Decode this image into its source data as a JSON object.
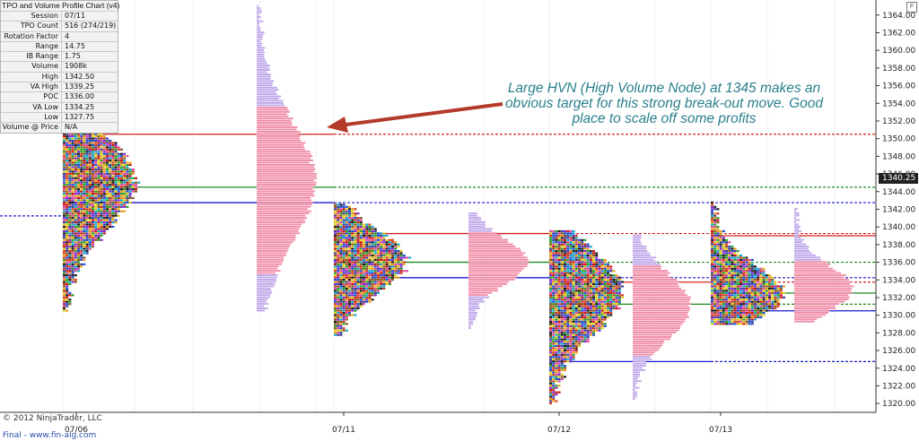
{
  "info_panel": {
    "title": "TPO and Volume Profile Chart (v4)",
    "rows": [
      {
        "key": "Session",
        "value": "07/11"
      },
      {
        "key": "TPO Count",
        "value": "516 (274/219)"
      },
      {
        "key": "Rotation Factor",
        "value": "4"
      },
      {
        "key": "Range",
        "value": "14.75"
      },
      {
        "key": "IB Range",
        "value": "1.75"
      },
      {
        "key": "Volume",
        "value": "1908k"
      },
      {
        "key": "High",
        "value": "1342.50"
      },
      {
        "key": "VA High",
        "value": "1339.25"
      },
      {
        "key": "POC",
        "value": "1336.00"
      },
      {
        "key": "VA Low",
        "value": "1334.25"
      },
      {
        "key": "Low",
        "value": "1327.75"
      },
      {
        "key": "Volume @ Price",
        "value": "N/A"
      }
    ]
  },
  "annotation": "Large HVN (High Volume Node) at 1345 makes an obvious target for this strong break-out move. Good place to scale off some profits",
  "copyright": "© 2012 NinjaTrader, LLC",
  "website": "Final - www.fin-alg.com",
  "price_tag": "1340.25",
  "corner_label": "F",
  "colors": {
    "red_line": "#d42020",
    "blue_line": "#1a1ad0",
    "green_line": "#1f8a1f",
    "volume_pink": "#f08ca6",
    "volume_purple": "#bfa8ea",
    "arrow": "#b43a2a",
    "annotation_text": "#2a7f8c"
  },
  "chart_data": {
    "type": "profile",
    "y_axis": {
      "ticks": [
        1320,
        1322,
        1324,
        1326,
        1328,
        1330,
        1332,
        1334,
        1336,
        1338,
        1340,
        1342,
        1344,
        1346,
        1348,
        1350,
        1352,
        1354,
        1356,
        1358,
        1360,
        1362,
        1364
      ],
      "tick_labels": [
        "1320.00",
        "1322.00",
        "1324.00",
        "1326.00",
        "1328.00",
        "1330.00",
        "1332.00",
        "1334.00",
        "1336.00",
        "1338.00",
        "1340.00",
        "1342.00",
        "1344.00",
        "1346.00",
        "1348.00",
        "1350.00",
        "1352.00",
        "1354.00",
        "1356.00",
        "1358.00",
        "1360.00",
        "1362.00",
        "1364.00"
      ],
      "range": [
        1319,
        1365.5
      ]
    },
    "x_axis": {
      "labels": [
        "07/06",
        "07/11",
        "07/12",
        "07/13"
      ]
    },
    "sessions": [
      {
        "date": "07/06",
        "tpo_low": 1330.5,
        "tpo_high": 1353.0,
        "tpo_poc": 1345.0,
        "vol_low": 1330.5,
        "vol_high": 1365.0,
        "vol_poc": 1345.0,
        "va_high": 1350.5,
        "va_low": 1342.75,
        "poc": 1344.5
      },
      {
        "date": "07/11",
        "tpo_low": 1327.75,
        "tpo_high": 1342.5,
        "tpo_poc": 1336.0,
        "vol_low": 1328.5,
        "vol_high": 1341.5,
        "vol_poc": 1336.0,
        "va_high": 1339.25,
        "va_low": 1334.25,
        "poc": 1336.0
      },
      {
        "date": "07/12",
        "tpo_low": 1320.0,
        "tpo_high": 1339.5,
        "tpo_poc": 1332.5,
        "vol_low": 1320.5,
        "vol_high": 1339.0,
        "vol_poc": 1331.0,
        "va_high": 1333.75,
        "va_low": 1324.75,
        "poc": 1331.25
      },
      {
        "date": "07/13",
        "tpo_low": 1329.0,
        "tpo_high": 1342.75,
        "tpo_poc": 1332.5,
        "vol_low": 1329.25,
        "vol_high": 1342.0,
        "vol_poc": 1333.0,
        "va_high": 1339.0,
        "va_low": 1330.5,
        "poc": 1332.5
      }
    ],
    "horizontal_levels": [
      {
        "price": 1350.5,
        "color": "red",
        "solid_from_date": "07/06",
        "solid_to_date": "07/11"
      },
      {
        "price": 1344.5,
        "color": "green",
        "solid_from_date": "07/06",
        "solid_to_date": "07/11"
      },
      {
        "price": 1342.75,
        "color": "blue",
        "solid_from_date": "07/06",
        "solid_to_date": "07/11"
      },
      {
        "price": 1339.25,
        "color": "red",
        "solid_from_date": "07/11",
        "solid_to_date": "07/12"
      },
      {
        "price": 1336.0,
        "color": "green",
        "solid_from_date": "07/11",
        "solid_to_date": "07/12"
      },
      {
        "price": 1334.25,
        "color": "blue",
        "solid_from_date": "07/11",
        "solid_to_date": "07/12"
      },
      {
        "price": 1333.75,
        "color": "red",
        "solid_from_date": "07/12",
        "solid_to_date": "07/13"
      },
      {
        "price": 1331.25,
        "color": "green",
        "solid_from_date": "07/12",
        "solid_to_date": "07/13"
      },
      {
        "price": 1324.75,
        "color": "blue",
        "solid_from_date": "07/12",
        "solid_to_date": "07/13"
      },
      {
        "price": 1339.0,
        "color": "red",
        "solid_from_date": "07/13",
        "solid_to_date": "end"
      },
      {
        "price": 1332.5,
        "color": "green",
        "solid_from_date": "07/13",
        "solid_to_date": "end"
      },
      {
        "price": 1330.5,
        "color": "blue",
        "solid_from_date": "07/13",
        "solid_to_date": "end"
      }
    ]
  }
}
